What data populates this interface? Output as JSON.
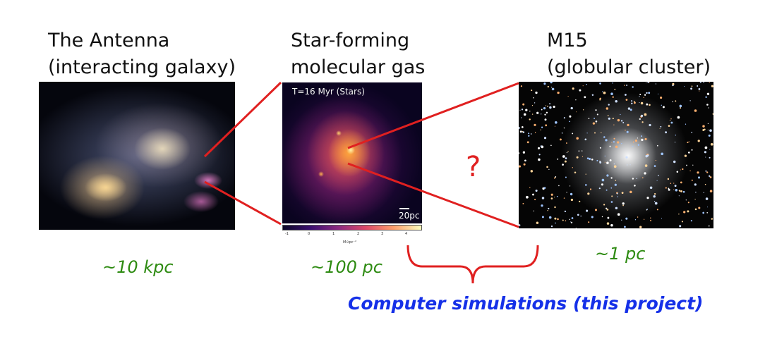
{
  "panels": {
    "antenna": {
      "title_line1": "The Antenna",
      "title_line2": "(interacting galaxy)",
      "scale": "~10 kpc"
    },
    "molgas": {
      "title_line1": "Star-forming",
      "title_line2": "molecular gas",
      "scale": "~100 pc",
      "sim_label": "T=16 Myr (Stars)",
      "scalebar": "20pc",
      "colorbar_ticks": [
        "-1",
        "0",
        "1",
        "2",
        "3",
        "4"
      ],
      "colorbar_label": "M⊙pc⁻²"
    },
    "m15": {
      "title_line1": "M15",
      "title_line2": "(globular cluster)",
      "scale": "~1 pc"
    }
  },
  "question_mark": "?",
  "bracket_label": "Computer simulations (this project)",
  "colors": {
    "connector": "#e02020",
    "scale_text": "#2e8b12",
    "bracket_text": "#1530e8"
  }
}
